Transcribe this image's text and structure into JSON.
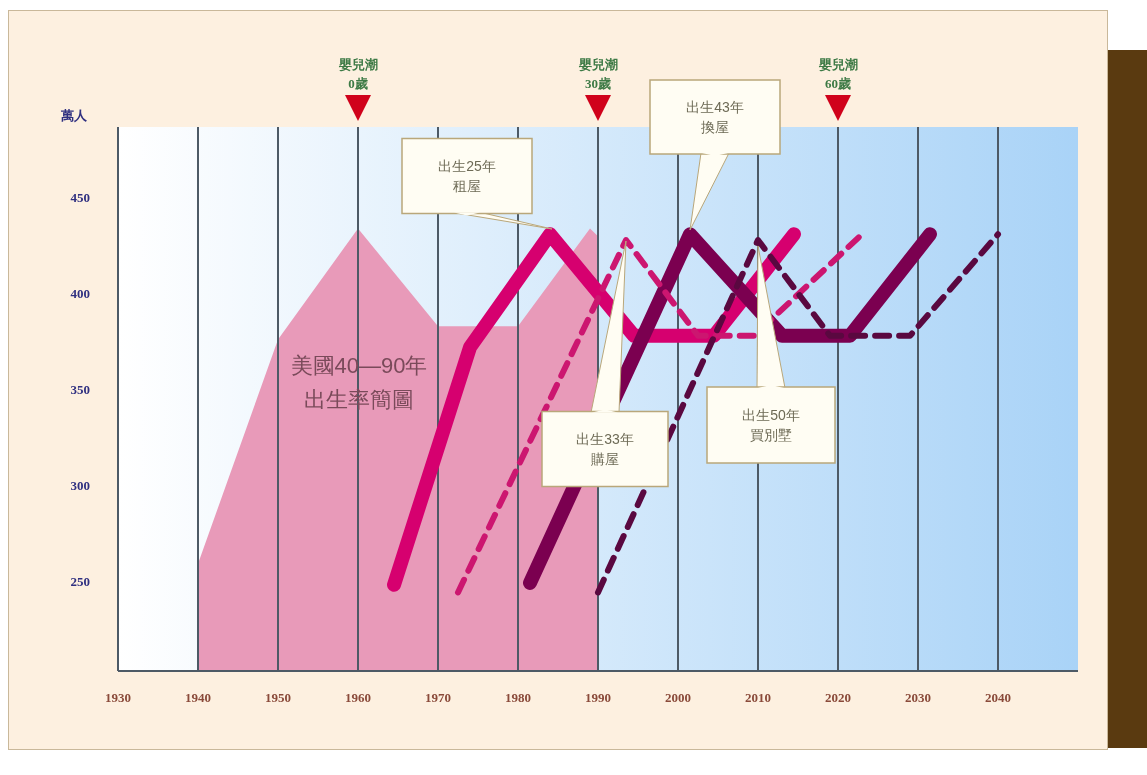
{
  "chart_data": {
    "type": "line",
    "ylabel": "萬人",
    "xlim": [
      1930,
      2050
    ],
    "xticks": [
      1930,
      1940,
      1950,
      1960,
      1970,
      1980,
      1990,
      2000,
      2010,
      2020,
      2030,
      2040
    ],
    "ylim": [
      203,
      487
    ],
    "yticks": [
      250,
      300,
      350,
      400,
      450
    ],
    "grid": "x",
    "legend": false,
    "marker": "none",
    "series": [
      {
        "name": "美國40—90年出生率簡圖",
        "type": "area",
        "color": "#e89ab9",
        "x": [
          1940,
          1950,
          1960,
          1970,
          1980,
          1989,
          1990
        ],
        "values": [
          259,
          376,
          434,
          383,
          383,
          434,
          430
        ]
      },
      {
        "color": "#d6006f",
        "line_style": "solid",
        "x": [
          1964.5,
          1974,
          1984,
          1994.5,
          2004.5,
          2014.5
        ],
        "values": [
          248,
          372,
          431,
          378,
          378,
          431
        ]
      },
      {
        "color": "#7b0050",
        "line_style": "solid",
        "x": [
          1981.5,
          2001.5,
          2013,
          2021.5,
          2031.5
        ],
        "values": [
          249,
          431,
          378,
          378,
          431
        ]
      },
      {
        "color": "#cc1670",
        "line_style": "dashed",
        "x": [
          1972.5,
          1993.5,
          2002.5,
          2009.5,
          2023
        ],
        "values": [
          244,
          428,
          378,
          378,
          431
        ]
      },
      {
        "color": "#5a0840",
        "line_style": "dashed",
        "x": [
          1990,
          2010,
          2019,
          2029,
          2040
        ],
        "values": [
          244,
          428,
          378,
          378,
          431
        ]
      }
    ],
    "annotations": [
      "嬰兒潮0歲",
      "嬰兒潮30歲",
      "嬰兒潮60歲",
      "出生25年租屋",
      "出生33年購屋",
      "出生43年換屋",
      "出生50年買別墅"
    ]
  }
}
